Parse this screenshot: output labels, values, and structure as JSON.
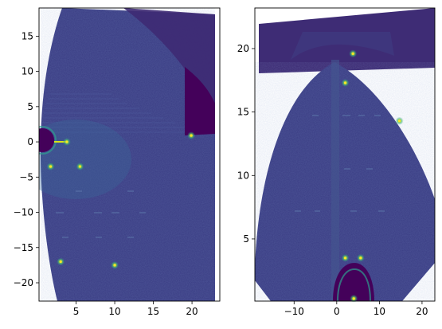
{
  "chart_data": [
    {
      "type": "heatmap",
      "panel": "left",
      "xlim": [
        0.2,
        23.6
      ],
      "ylim": [
        -22.6,
        19.0
      ],
      "xticks": [
        5,
        10,
        15,
        20
      ],
      "yticks": [
        -20,
        -15,
        -10,
        -5,
        0,
        5,
        10,
        15
      ],
      "colormap": "viridis",
      "background_value_color": "#44015a",
      "grid": false,
      "bright_features": [
        {
          "x": 3.8,
          "y": 0.0
        },
        {
          "x": 5.5,
          "y": -3.5
        },
        {
          "x": 1.7,
          "y": -3.5
        },
        {
          "x": 10.0,
          "y": -17.5
        },
        {
          "x": 3.0,
          "y": -17.0
        },
        {
          "x": 19.9,
          "y": 0.9
        }
      ]
    },
    {
      "type": "heatmap",
      "panel": "right",
      "xlim": [
        -19.2,
        23.0
      ],
      "ylim": [
        0.1,
        23.2
      ],
      "xticks": [
        -10,
        0,
        10,
        20
      ],
      "yticks": [
        5,
        10,
        15,
        20
      ],
      "colormap": "viridis",
      "background_value_color": "#44015a",
      "grid": false,
      "bright_features": [
        {
          "x": 2.0,
          "y": 17.3
        },
        {
          "x": 2.0,
          "y": 3.5
        },
        {
          "x": 5.6,
          "y": 3.5
        },
        {
          "x": 4.0,
          "y": 0.3
        },
        {
          "x": 14.7,
          "y": 14.3
        },
        {
          "x": 3.8,
          "y": 19.6
        }
      ]
    }
  ]
}
